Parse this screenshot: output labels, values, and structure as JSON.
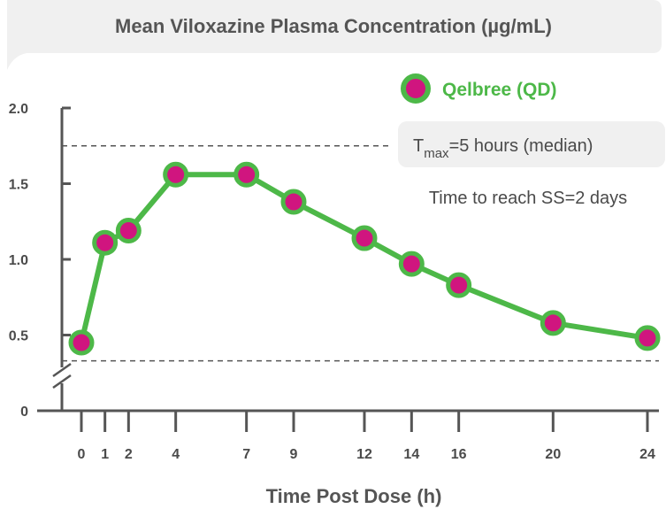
{
  "colors": {
    "line": "#4db848",
    "marker_fill": "#d0157f",
    "marker_stroke": "#4db848",
    "axis": "#555555",
    "text": "#4a4a4a",
    "panel": "#f0f0f0",
    "dashed": "#555555"
  },
  "chart_data": {
    "type": "line",
    "title": "Mean Viloxazine Plasma Concentration (µg/mL)",
    "xlabel": "Time Post Dose (h)",
    "ylabel": "",
    "x_ticks": [
      0,
      1,
      2,
      4,
      7,
      9,
      12,
      14,
      16,
      20,
      24
    ],
    "y_ticks": [
      {
        "value": 0,
        "label": "0"
      },
      {
        "value": 0.5,
        "label": "0.5"
      },
      {
        "value": 1.0,
        "label": "1.0"
      },
      {
        "value": 1.5,
        "label": "1.5"
      },
      {
        "value": 2.0,
        "label": "2.0"
      }
    ],
    "ylim": [
      0,
      2.0
    ],
    "xlim": [
      0,
      24
    ],
    "axis_break": true,
    "series": [
      {
        "name": "Qelbree (QD)",
        "x": [
          0,
          1,
          2,
          4,
          7,
          9,
          12,
          14,
          16,
          20,
          24
        ],
        "values": [
          0.45,
          1.11,
          1.19,
          1.56,
          1.56,
          1.38,
          1.14,
          0.97,
          0.83,
          0.58,
          0.48
        ]
      }
    ],
    "reference_lines": [
      {
        "axis": "y",
        "value": 1.75,
        "style": "dashed"
      },
      {
        "axis": "y",
        "value": 0.33,
        "style": "dashed"
      }
    ],
    "annotations": {
      "tmax_prefix": "T",
      "tmax_sub": "max",
      "tmax_suffix": "=5 hours (median)",
      "steady_state": "Time to reach SS=2 days"
    },
    "legend_position": "top-right",
    "grid": false
  }
}
